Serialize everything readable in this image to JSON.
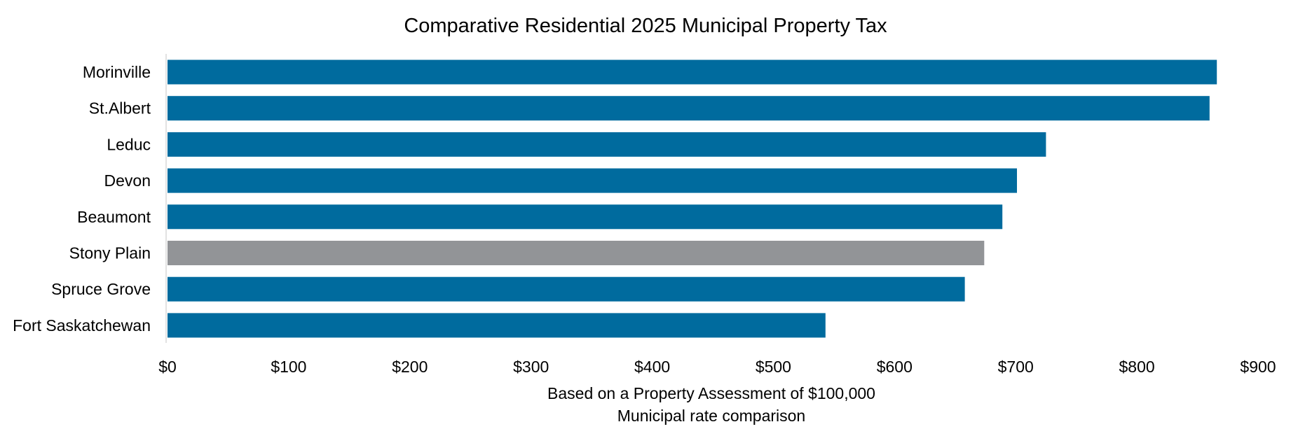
{
  "chart_data": {
    "type": "bar",
    "orientation": "horizontal",
    "title": "Comparative Residential 2025 Municipal Property Tax",
    "categories": [
      "Morinville",
      "St.Albert",
      "Leduc",
      "Devon",
      "Beaumont",
      "Stony Plain",
      "Spruce Grove",
      "Fort Saskatchewan"
    ],
    "values": [
      866,
      860,
      725,
      701,
      689,
      674,
      658,
      543
    ],
    "highlight_category": "Stony Plain",
    "colors": {
      "default": "#006b9e",
      "highlight": "#929497"
    },
    "xlabel_lines": [
      "Based on a Property Assessment of $100,000",
      "Municipal rate comparison"
    ],
    "xlim": [
      0,
      900
    ],
    "xticks": [
      0,
      100,
      200,
      300,
      400,
      500,
      600,
      700,
      800,
      900
    ],
    "xtick_labels": [
      "$0",
      "$100",
      "$200",
      "$300",
      "$400",
      "$500",
      "$600",
      "$700",
      "$800",
      "$900"
    ],
    "grid": false,
    "legend": "none"
  }
}
